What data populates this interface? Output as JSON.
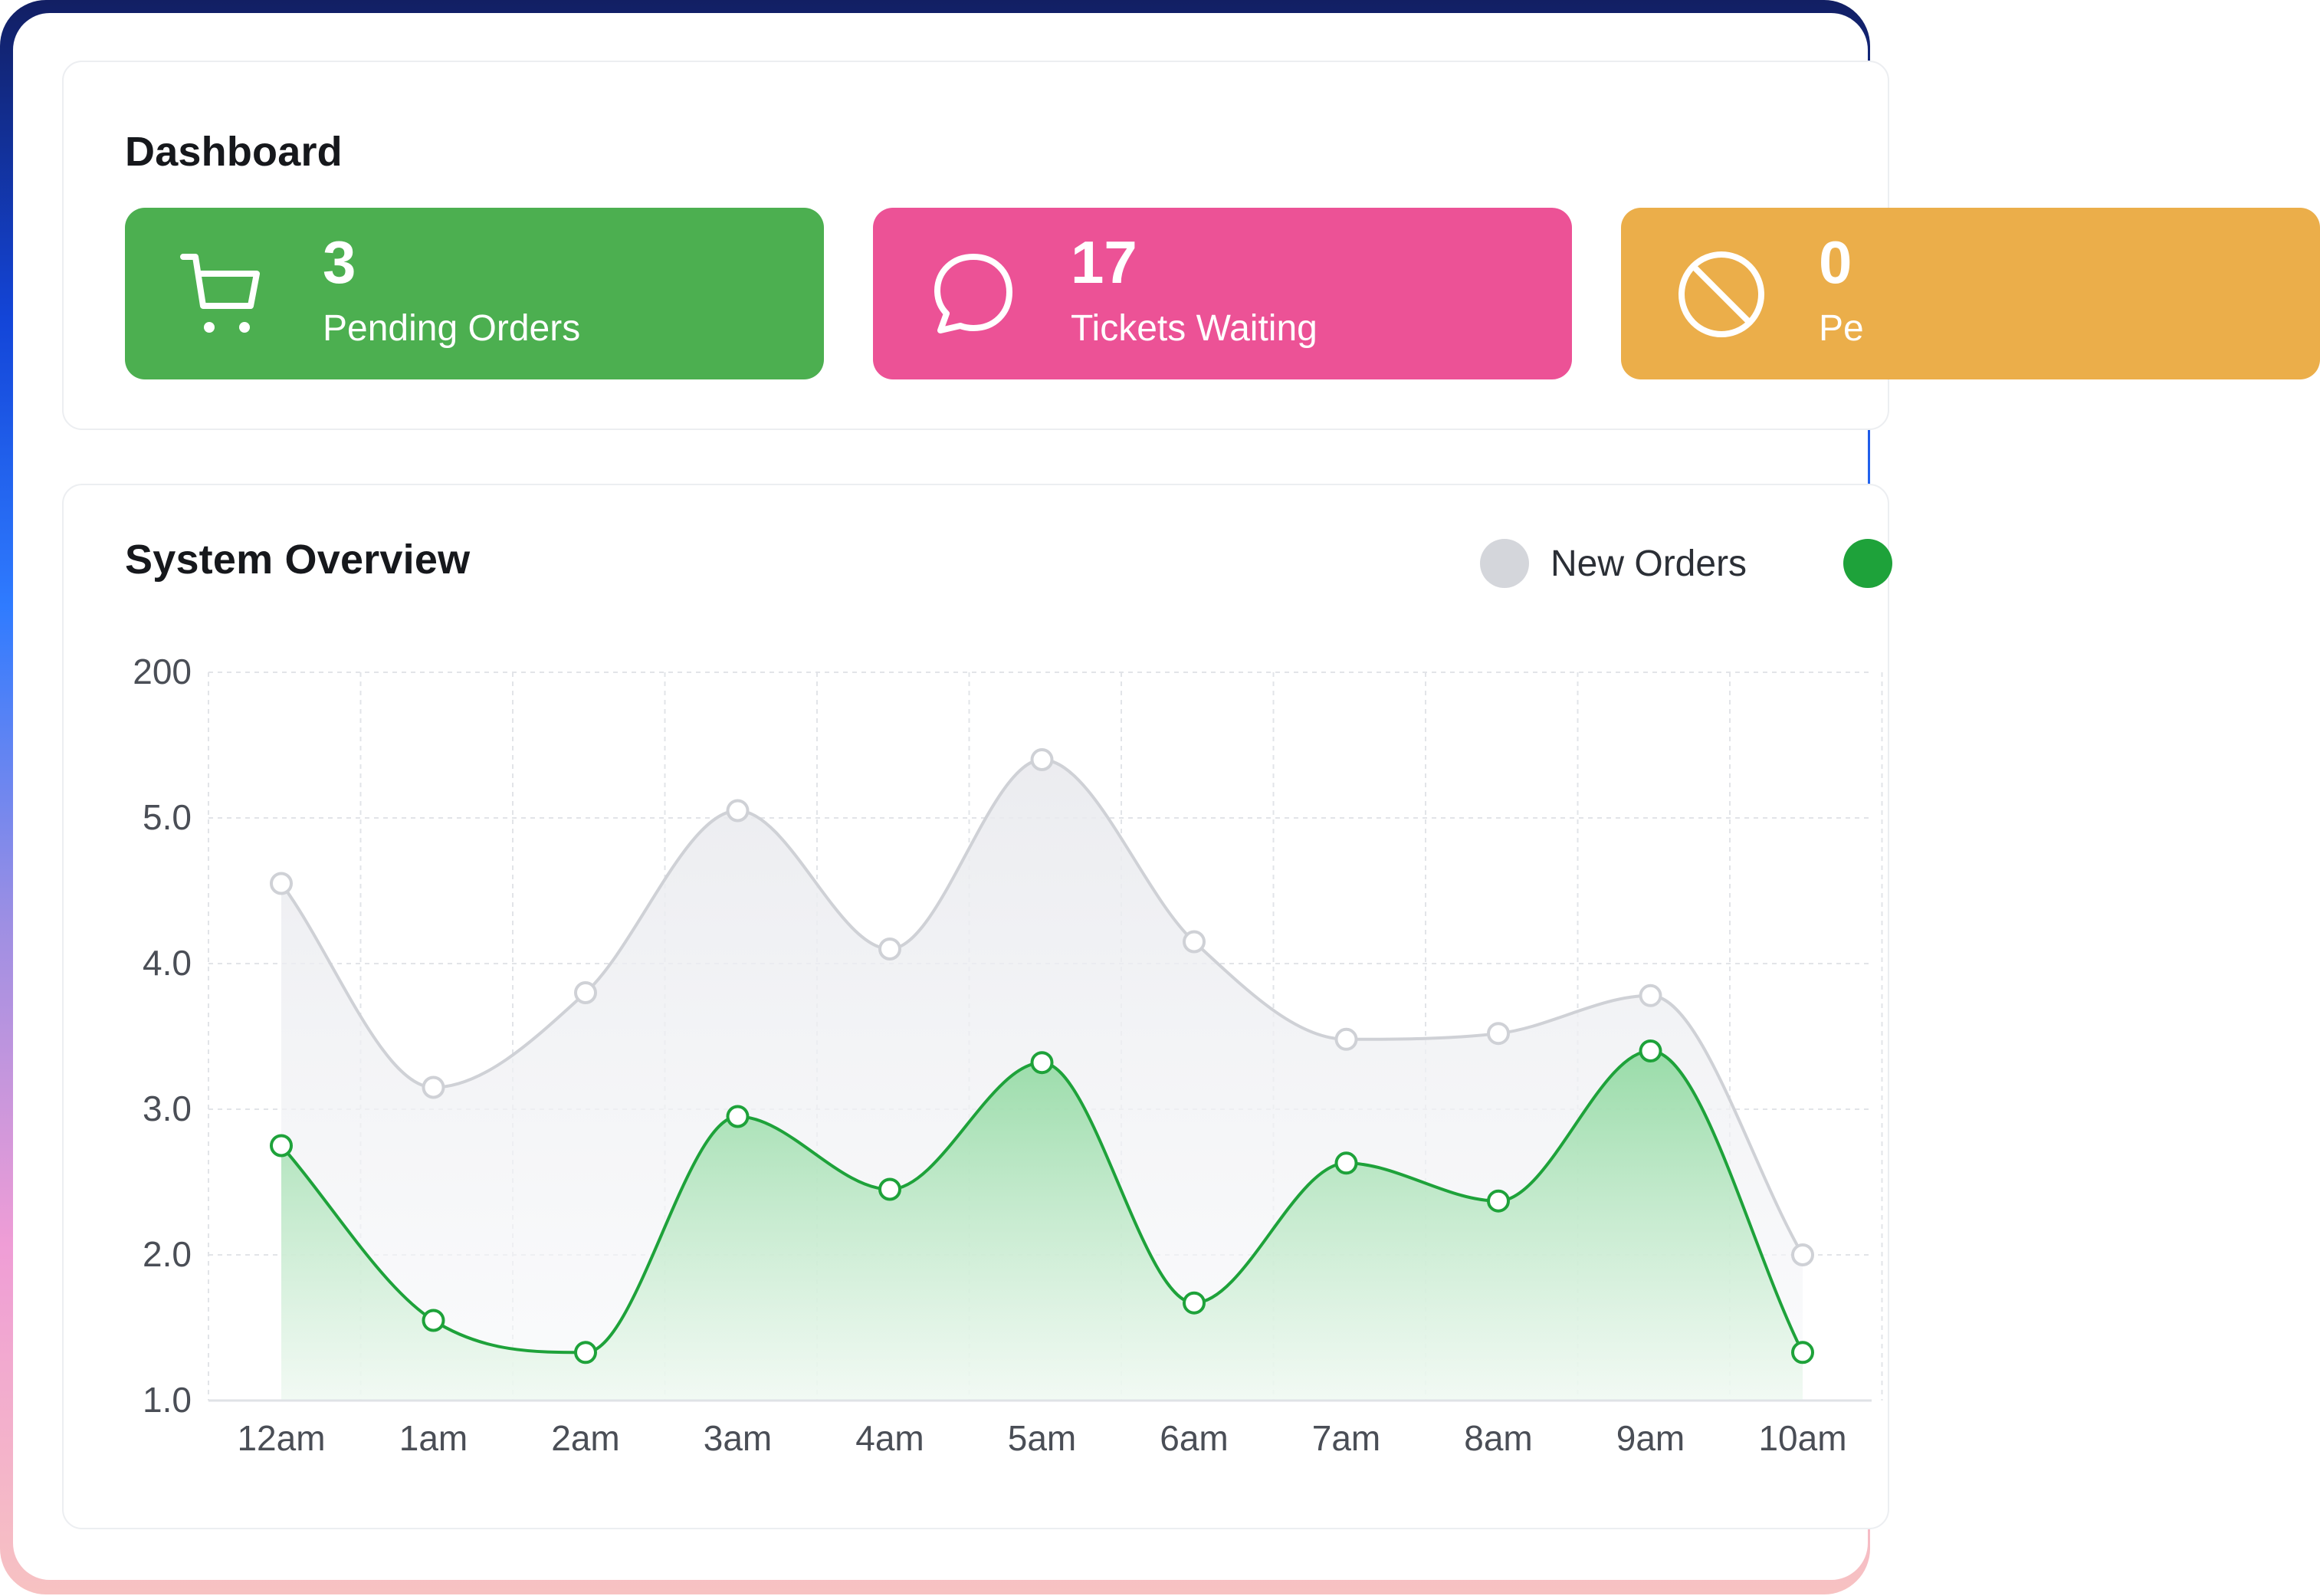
{
  "dashboard": {
    "title": "Dashboard",
    "stats": [
      {
        "value": "3",
        "label": "Pending Orders",
        "color": "#4caf50",
        "icon": "cart-icon"
      },
      {
        "value": "17",
        "label": "Tickets Waiting",
        "color": "#ec5296",
        "icon": "chat-bubble-icon"
      },
      {
        "value": "0",
        "label": "Pe",
        "color": "#ebae4a",
        "icon": "block-icon"
      }
    ]
  },
  "overview": {
    "title": "System Overview",
    "legend": [
      {
        "name": "New Orders",
        "color": "#d4d6db"
      },
      {
        "name": "",
        "color": "#1ea23a"
      }
    ]
  },
  "chart_data": {
    "type": "area",
    "title": "System Overview",
    "categories": [
      "12am",
      "1am",
      "2am",
      "3am",
      "4am",
      "5am",
      "6am",
      "7am",
      "8am",
      "9am",
      "10am"
    ],
    "y_tick_labels": [
      "1.0",
      "2.0",
      "3.0",
      "4.0",
      "5.0",
      "200"
    ],
    "series": [
      {
        "name": "New Orders",
        "color": "#d4d6db",
        "values": [
          4.55,
          3.15,
          3.8,
          5.05,
          4.1,
          5.4,
          4.15,
          3.48,
          3.52,
          3.78,
          2.0
        ]
      },
      {
        "color": "#1ea23a",
        "values": [
          2.75,
          1.55,
          1.33,
          2.95,
          2.45,
          3.32,
          1.67,
          2.63,
          2.37,
          3.4,
          1.33
        ]
      }
    ],
    "grid": true,
    "legend": "top-right"
  }
}
